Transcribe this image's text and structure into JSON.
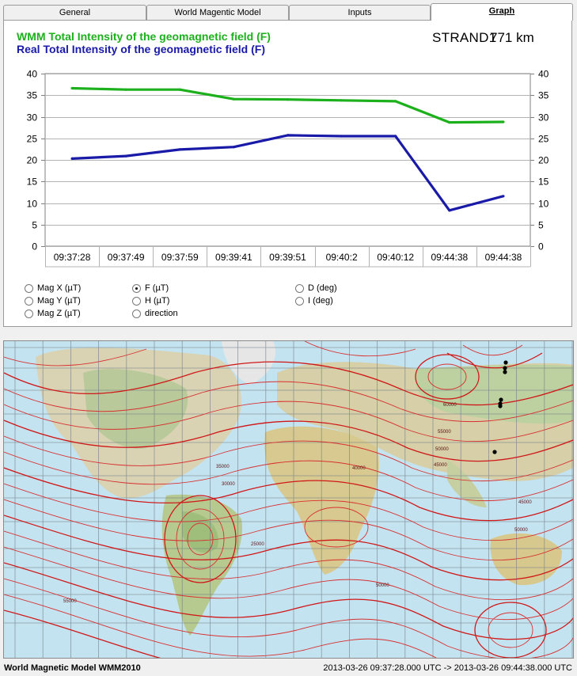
{
  "tabs": [
    {
      "label": "General",
      "active": false
    },
    {
      "label": "World Magentic Model",
      "active": false
    },
    {
      "label": "Inputs",
      "active": false
    },
    {
      "label": "Graph",
      "active": true
    }
  ],
  "legend": {
    "wmm": "WMM Total Intensity of the geomagnetic field (F)",
    "real": "Real Total Intensity of the geomagnetic field (F)"
  },
  "satellite": {
    "name": "STRAND1",
    "altitude": "771 km"
  },
  "colors": {
    "wmm": "#1cb01c",
    "real": "#1a1aa8"
  },
  "chart_data": {
    "type": "line",
    "categories": [
      "09:37:28",
      "09:37:49",
      "09:37:59",
      "09:39:41",
      "09:39:51",
      "09:40:2",
      "09:40:12",
      "09:44:38",
      "09:44:38"
    ],
    "ylim": [
      0,
      40
    ],
    "yticks": [
      "0",
      "5",
      "10",
      "15",
      "20",
      "25",
      "30",
      "35",
      "40"
    ],
    "grid": true,
    "series": [
      {
        "name": "WMM Total Intensity of the geomagnetic field (F)",
        "color": "#1cb01c",
        "values": [
          36.6,
          36.3,
          36.3,
          34.1,
          34.0,
          33.8,
          33.6,
          28.7,
          28.8
        ]
      },
      {
        "name": "Real Total Intensity of the geomagnetic field (F)",
        "color": "#1a1aa8",
        "values": [
          20.3,
          20.9,
          22.4,
          23.0,
          25.7,
          25.5,
          25.5,
          8.3,
          11.6
        ]
      }
    ]
  },
  "options": {
    "mag_x": "Mag X (µT)",
    "mag_y": "Mag Y (µT)",
    "mag_z": "Mag Z (µT)",
    "f": "F  (µT)",
    "h": "H  (µT)",
    "direction": "direction",
    "d": "D (deg)",
    "i": "I (deg)",
    "selected": "f"
  },
  "map": {
    "contour_labels": [
      "60000",
      "55000",
      "50000",
      "45000",
      "40000",
      "35000",
      "30000",
      "25000"
    ]
  },
  "status": {
    "model": "World Magnetic Model WMM2010",
    "time_range": "2013-03-26 09:37:28.000 UTC -> 2013-03-26 09:44:38.000 UTC"
  }
}
